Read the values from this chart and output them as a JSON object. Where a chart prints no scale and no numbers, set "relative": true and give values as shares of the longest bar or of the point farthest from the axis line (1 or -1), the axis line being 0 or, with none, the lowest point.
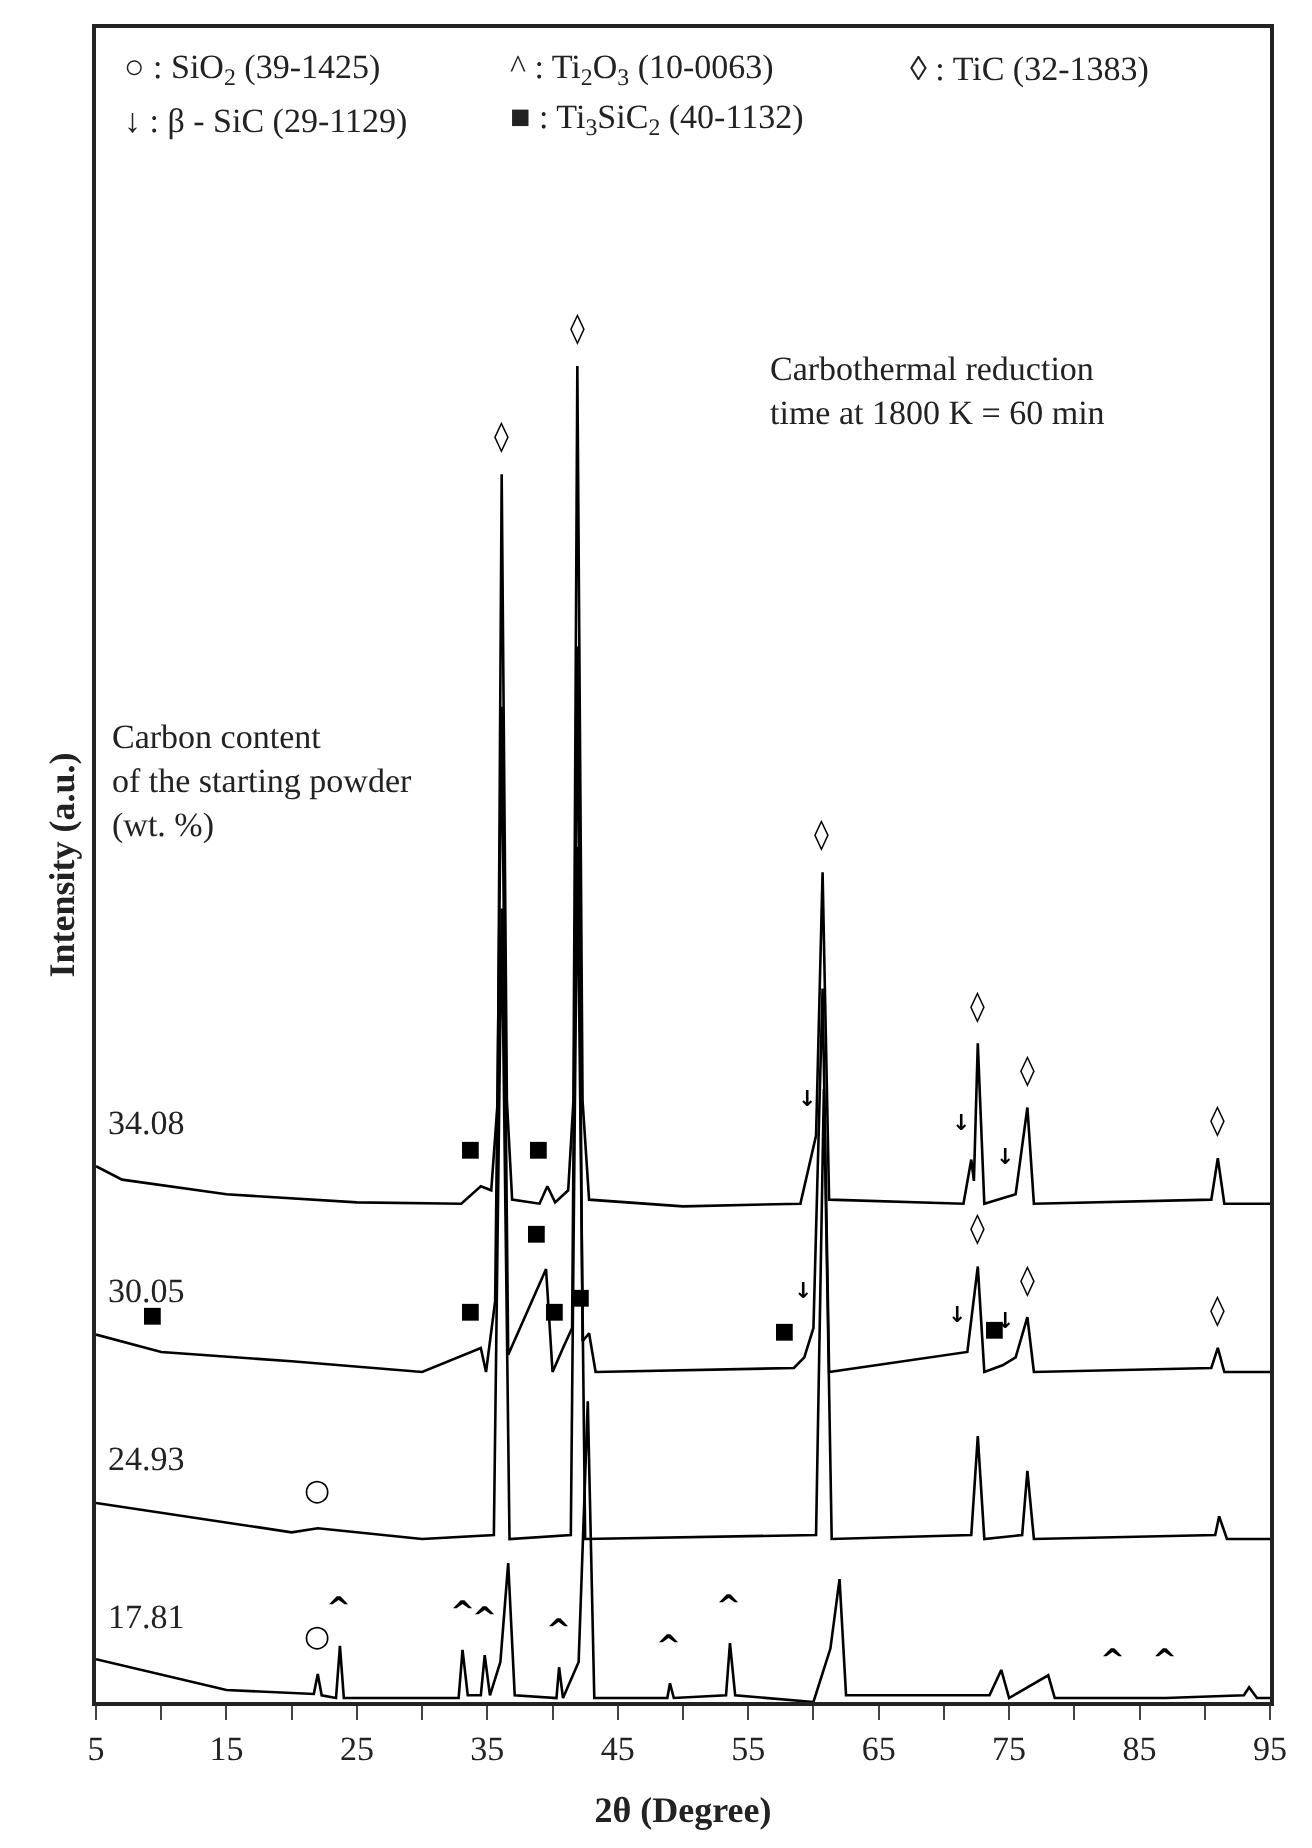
{
  "chart_data": {
    "type": "line",
    "relative": true,
    "xlabel": "2θ (Degree)",
    "ylabel": "Intensity (a.u.)",
    "xlim": [
      5,
      95
    ],
    "xticks": [
      5,
      {
        "value": 10,
        "label": null
      },
      15,
      {
        "value": 20,
        "label": null
      },
      25,
      {
        "value": 30,
        "label": null
      },
      35,
      {
        "value": 40,
        "label": null
      },
      45,
      {
        "value": 50,
        "label": null
      },
      55,
      {
        "value": 60,
        "label": null
      },
      65,
      {
        "value": 70,
        "label": null
      },
      75,
      {
        "value": 80,
        "label": null
      },
      85,
      {
        "value": 90,
        "label": null
      },
      95
    ],
    "legend": false,
    "marker": "none",
    "line_style": "solid",
    "series": [
      {
        "name": "34.08",
        "color": "#000000",
        "x": [
          5,
          7,
          15,
          25,
          33,
          34.5,
          35.3,
          35.8,
          36.1,
          36.5,
          36.9,
          39,
          39.6,
          40.2,
          41.2,
          41.6,
          41.9,
          42.3,
          42.8,
          50,
          59,
          60.2,
          60.7,
          61.2,
          71.5,
          72.1,
          72.3,
          72.6,
          73.1,
          75.5,
          76.4,
          76.9,
          90.5,
          91,
          91.5,
          95
        ],
        "values": [
          0.401,
          0.391,
          0.38,
          0.374,
          0.373,
          0.386,
          0.383,
          0.45,
          0.919,
          0.45,
          0.376,
          0.373,
          0.386,
          0.374,
          0.383,
          0.45,
          1.0,
          0.45,
          0.376,
          0.371,
          0.373,
          0.424,
          0.621,
          0.376,
          0.373,
          0.406,
          0.39,
          0.493,
          0.373,
          0.38,
          0.445,
          0.373,
          0.376,
          0.407,
          0.373,
          0.373
        ]
      },
      {
        "name": "30.05",
        "color": "#000000",
        "x": [
          5,
          10,
          20,
          30,
          34.5,
          34.9,
          35.6,
          36.1,
          36.6,
          39.5,
          40,
          40.8,
          41.5,
          41.9,
          42.3,
          42.8,
          43.3,
          58.5,
          59.3,
          60,
          60.7,
          61.2,
          71.8,
          72.6,
          73.1,
          74.5,
          75.5,
          76.4,
          76.9,
          90.5,
          91,
          91.5,
          95
        ],
        "values": [
          0.275,
          0.262,
          0.255,
          0.247,
          0.265,
          0.247,
          0.3,
          0.745,
          0.26,
          0.324,
          0.247,
          0.265,
          0.28,
          0.79,
          0.27,
          0.276,
          0.247,
          0.25,
          0.258,
          0.28,
          0.534,
          0.247,
          0.262,
          0.326,
          0.247,
          0.252,
          0.258,
          0.288,
          0.247,
          0.25,
          0.265,
          0.247,
          0.247
        ]
      },
      {
        "name": "24.93",
        "color": "#000000",
        "x": [
          5,
          20,
          22,
          30,
          35.5,
          36.1,
          36.7,
          41.4,
          41.9,
          42.5,
          60.2,
          60.8,
          61.4,
          72.1,
          72.6,
          73.1,
          76,
          76.4,
          76.9,
          90.8,
          91.1,
          91.7,
          95
        ],
        "values": [
          0.149,
          0.127,
          0.13,
          0.122,
          0.125,
          0.594,
          0.122,
          0.125,
          0.64,
          0.122,
          0.125,
          0.459,
          0.122,
          0.125,
          0.199,
          0.122,
          0.125,
          0.173,
          0.122,
          0.125,
          0.139,
          0.122,
          0.122
        ]
      },
      {
        "name": "17.81",
        "color": "#000000",
        "x": [
          5,
          15,
          21.7,
          22,
          22.3,
          23.4,
          23.7,
          24,
          32.8,
          33.1,
          33.5,
          34.5,
          34.8,
          35.2,
          36,
          36.6,
          37.1,
          40.3,
          40.5,
          40.8,
          42,
          42.7,
          43.2,
          48.8,
          49,
          49.3,
          53.3,
          53.6,
          54,
          60,
          61.3,
          62,
          62.5,
          73.5,
          74.4,
          75,
          78,
          78.5,
          83,
          87,
          93,
          93.4,
          94,
          95
        ],
        "values": [
          0.032,
          0.009,
          0.006,
          0.021,
          0.005,
          0.003,
          0.042,
          0.003,
          0.003,
          0.039,
          0.005,
          0.005,
          0.035,
          0.005,
          0.03,
          0.104,
          0.005,
          0.003,
          0.026,
          0.003,
          0.03,
          0.225,
          0.003,
          0.003,
          0.014,
          0.003,
          0.005,
          0.044,
          0.005,
          0.0,
          0.04,
          0.092,
          0.005,
          0.005,
          0.024,
          0.003,
          0.02,
          0.003,
          0.003,
          0.003,
          0.005,
          0.011,
          0.003,
          0.003
        ]
      }
    ],
    "annotations": [
      "○ : SiO$_{2}$ (39-1425)",
      "^ : Ti$_{2}$O$_{3}$ (10-0063)",
      "◊ : TiC (32-1383)",
      "↓ : β - SiC (29-1129)",
      "■ : Ti$_{3}$SiC$_{2}$ (40-1132)",
      "Carbothermal reduction\ntime at 1800 K = 60 min",
      "Carbon content\nof the starting powder\n(wt. %)",
      {
        "text": "◊",
        "x": 36.1,
        "y": 0.919
      },
      {
        "text": "◊",
        "x": 41.9,
        "y": 1.0
      },
      {
        "text": "◊",
        "x": 60.7,
        "y": 0.621
      },
      {
        "text": "◊",
        "x": 72.6,
        "y": 0.493
      },
      {
        "text": "◊",
        "x": 76.4,
        "y": 0.445
      },
      {
        "text": "◊",
        "x": 91.0,
        "y": 0.407
      },
      {
        "text": "◊",
        "x": 72.6,
        "y": 0.326
      },
      {
        "text": "◊",
        "x": 76.4,
        "y": 0.288
      },
      {
        "text": "◊",
        "x": 91.0,
        "y": 0.265
      },
      {
        "text": "↓",
        "x": 60.2,
        "y": 0.424
      },
      {
        "text": "↓",
        "x": 72.1,
        "y": 0.406
      },
      {
        "text": "↓",
        "x": 75.5,
        "y": 0.38
      },
      {
        "text": "↓",
        "x": 60.0,
        "y": 0.28
      },
      {
        "text": "↓",
        "x": 71.8,
        "y": 0.262
      },
      {
        "text": "↓",
        "x": 75.5,
        "y": 0.258
      },
      {
        "text": "■",
        "x": 34.5,
        "y": 0.386
      },
      {
        "text": "■",
        "x": 39.6,
        "y": 0.386
      },
      {
        "text": "■",
        "x": 10,
        "y": 0.262
      },
      {
        "text": "■",
        "x": 34.5,
        "y": 0.265
      },
      {
        "text": "■",
        "x": 39.5,
        "y": 0.324
      },
      {
        "text": "■",
        "x": 40.8,
        "y": 0.265
      },
      {
        "text": "■",
        "x": 42.8,
        "y": 0.276
      },
      {
        "text": "■",
        "x": 58.5,
        "y": 0.25
      },
      {
        "text": "■",
        "x": 74.6,
        "y": 0.252
      },
      {
        "text": "○",
        "x": 22,
        "y": 0.13
      },
      {
        "text": "○",
        "x": 22,
        "y": 0.021
      },
      {
        "text": "^",
        "x": 23.7,
        "y": 0.042
      },
      {
        "text": "^",
        "x": 33.1,
        "y": 0.039
      },
      {
        "text": "^",
        "x": 34.8,
        "y": 0.035
      },
      {
        "text": "^",
        "x": 40.5,
        "y": 0.026
      },
      {
        "text": "^",
        "x": 49,
        "y": 0.014
      },
      {
        "text": "^",
        "x": 53.6,
        "y": 0.044
      },
      {
        "text": "^",
        "x": 83,
        "y": 0.003
      },
      {
        "text": "^",
        "x": 87,
        "y": 0.003
      }
    ]
  }
}
